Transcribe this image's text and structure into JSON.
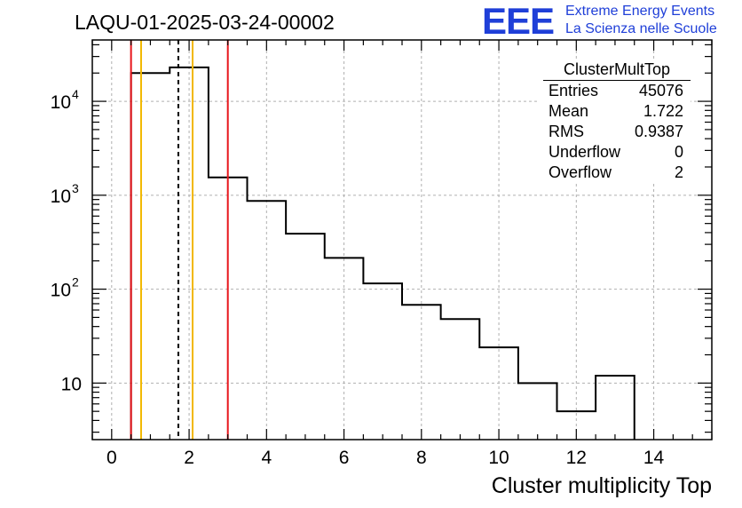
{
  "header": {
    "run_title": "LAQU-01-2025-03-24-00002",
    "logo_text": "EEE",
    "logo_line1": "Extreme Energy Events",
    "logo_line2": "La Scienza nelle Scuole"
  },
  "stats": {
    "title": "ClusterMultTop",
    "rows": [
      {
        "label": "Entries",
        "value": "45076"
      },
      {
        "label": "Mean",
        "value": "1.722"
      },
      {
        "label": "RMS",
        "value": "0.9387"
      },
      {
        "label": "Underflow",
        "value": "0"
      },
      {
        "label": "Overflow",
        "value": "2"
      }
    ]
  },
  "colors": {
    "red_line": "#e8141a",
    "orange_line": "#f2b800",
    "grid": "#b0b0b0",
    "histogram": "#000000"
  },
  "chart_data": {
    "type": "histogram",
    "title": "LAQU-01-2025-03-24-00002",
    "xlabel": "Cluster multiplicity Top",
    "ylabel": "",
    "xlim": [
      -0.5,
      15.5
    ],
    "ylim": [
      2.5,
      45000
    ],
    "yscale": "log",
    "grid": true,
    "bin_width": 1,
    "bins": [
      {
        "low": 0.5,
        "high": 1.5,
        "count": 20000
      },
      {
        "low": 1.5,
        "high": 2.5,
        "count": 23000
      },
      {
        "low": 2.5,
        "high": 3.5,
        "count": 1550
      },
      {
        "low": 3.5,
        "high": 4.5,
        "count": 870
      },
      {
        "low": 4.5,
        "high": 5.5,
        "count": 390
      },
      {
        "low": 5.5,
        "high": 6.5,
        "count": 215
      },
      {
        "low": 6.5,
        "high": 7.5,
        "count": 115
      },
      {
        "low": 7.5,
        "high": 8.5,
        "count": 68
      },
      {
        "low": 8.5,
        "high": 9.5,
        "count": 48
      },
      {
        "low": 9.5,
        "high": 10.5,
        "count": 24
      },
      {
        "low": 10.5,
        "high": 11.5,
        "count": 10
      },
      {
        "low": 11.5,
        "high": 12.5,
        "count": 5
      },
      {
        "low": 12.5,
        "high": 13.5,
        "count": 12
      }
    ],
    "x_ticks": [
      0,
      2,
      4,
      6,
      8,
      10,
      12,
      14
    ],
    "x_tick_labels": [
      "0",
      "2",
      "4",
      "6",
      "8",
      "10",
      "12",
      "14"
    ],
    "y_ticks": [
      {
        "value": 10,
        "base": "10",
        "exp": ""
      },
      {
        "value": 100,
        "base": "10",
        "exp": "2"
      },
      {
        "value": 1000,
        "base": "10",
        "exp": "3"
      },
      {
        "value": 10000,
        "base": "10",
        "exp": "4"
      }
    ],
    "vertical_lines": [
      {
        "x": 0.5,
        "style": "solid",
        "color": "red"
      },
      {
        "x": 3.0,
        "style": "solid",
        "color": "red"
      },
      {
        "x": 0.76,
        "style": "solid",
        "color": "orange"
      },
      {
        "x": 2.09,
        "style": "solid",
        "color": "orange"
      },
      {
        "x": 1.722,
        "style": "dashed",
        "color": "black"
      }
    ]
  }
}
